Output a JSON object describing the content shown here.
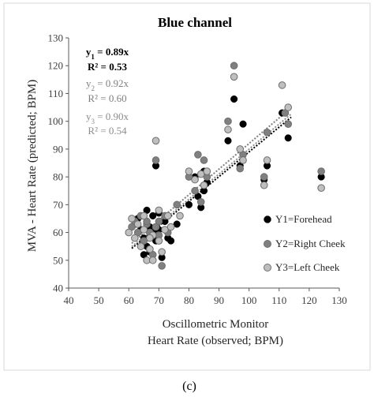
{
  "caption": "(c)",
  "chart_data": {
    "type": "scatter",
    "title": "Blue channel",
    "xlabel_line1": "Oscillometric Monitor",
    "xlabel_line2": "Heart Rate (observed; BPM)",
    "ylabel": "MVA - Heart Rate (predicted; BPM)",
    "xlim": [
      40,
      130
    ],
    "ylim": [
      40,
      130
    ],
    "xticks": [
      "40",
      "50",
      "60",
      "70",
      "80",
      "90",
      "100",
      "110",
      "120",
      "130"
    ],
    "yticks": [
      "40",
      "50",
      "60",
      "70",
      "80",
      "90",
      "100",
      "110",
      "120",
      "130"
    ],
    "grid": false,
    "legend_position": "bottom-right",
    "equations": [
      {
        "line1_html": "y<tspan baseline-shift='sub' font-size='9'>1</tspan> = 0.89x",
        "r2": "R² = 0.53",
        "color": "#000000",
        "bold": true
      },
      {
        "line1_html": "y<tspan baseline-shift='sub' font-size='9'>2</tspan> = 0.92x",
        "r2": "R² = 0.60",
        "color": "#7f7f7f",
        "bold": false
      },
      {
        "line1_html": "y<tspan baseline-shift='sub' font-size='9'>3</tspan> = 0.90x",
        "r2": "R² = 0.54",
        "color": "#8c8c8c",
        "bold": false
      }
    ],
    "series": [
      {
        "name": "Y1=Forehead",
        "fill": "#000000",
        "stroke": "#000000",
        "slope": 0.89,
        "points": [
          [
            62,
            63
          ],
          [
            63,
            65
          ],
          [
            64,
            61
          ],
          [
            65,
            58
          ],
          [
            66,
            68
          ],
          [
            66,
            55
          ],
          [
            67,
            62
          ],
          [
            68,
            66
          ],
          [
            68,
            60
          ],
          [
            69,
            57
          ],
          [
            70,
            67
          ],
          [
            70,
            61
          ],
          [
            71,
            51
          ],
          [
            69,
            84
          ],
          [
            72,
            64
          ],
          [
            73,
            58
          ],
          [
            74,
            57
          ],
          [
            76,
            63
          ],
          [
            80,
            70
          ],
          [
            82,
            80
          ],
          [
            83,
            73
          ],
          [
            84,
            69
          ],
          [
            85,
            75
          ],
          [
            85,
            82
          ],
          [
            86,
            78
          ],
          [
            93,
            93
          ],
          [
            95,
            108
          ],
          [
            97,
            84
          ],
          [
            98,
            99
          ],
          [
            105,
            79
          ],
          [
            106,
            84
          ],
          [
            111,
            103
          ],
          [
            113,
            94
          ],
          [
            124,
            80
          ],
          [
            65,
            52
          ],
          [
            67,
            53
          ]
        ]
      },
      {
        "name": "Y2=Right Cheek",
        "fill": "#808080",
        "stroke": "#6d6d6d",
        "slope": 0.92,
        "points": [
          [
            61,
            62
          ],
          [
            62,
            64
          ],
          [
            63,
            60
          ],
          [
            64,
            66
          ],
          [
            65,
            57
          ],
          [
            66,
            63
          ],
          [
            67,
            60
          ],
          [
            68,
            52
          ],
          [
            69,
            86
          ],
          [
            70,
            59
          ],
          [
            70,
            64
          ],
          [
            71,
            48
          ],
          [
            72,
            66
          ],
          [
            73,
            60
          ],
          [
            76,
            70
          ],
          [
            80,
            80
          ],
          [
            82,
            75
          ],
          [
            83,
            88
          ],
          [
            84,
            71
          ],
          [
            85,
            86
          ],
          [
            86,
            80
          ],
          [
            93,
            100
          ],
          [
            95,
            120
          ],
          [
            97,
            83
          ],
          [
            98,
            88
          ],
          [
            105,
            80
          ],
          [
            106,
            96
          ],
          [
            112,
            103
          ],
          [
            113,
            99
          ],
          [
            124,
            82
          ],
          [
            66,
            64
          ],
          [
            69,
            62
          ]
        ]
      },
      {
        "name": "Y3=Left Cheek",
        "fill": "#bfbfbf",
        "stroke": "#6d6d6d",
        "slope": 0.9,
        "points": [
          [
            60,
            60
          ],
          [
            61,
            65
          ],
          [
            62,
            58
          ],
          [
            63,
            63
          ],
          [
            64,
            55
          ],
          [
            65,
            66
          ],
          [
            66,
            50
          ],
          [
            67,
            54
          ],
          [
            68,
            59
          ],
          [
            69,
            93
          ],
          [
            70,
            57
          ],
          [
            70,
            68
          ],
          [
            71,
            53
          ],
          [
            72,
            61
          ],
          [
            73,
            66
          ],
          [
            74,
            62
          ],
          [
            77,
            66
          ],
          [
            80,
            82
          ],
          [
            82,
            79
          ],
          [
            84,
            81
          ],
          [
            85,
            77
          ],
          [
            86,
            82
          ],
          [
            93,
            97
          ],
          [
            95,
            116
          ],
          [
            97,
            90
          ],
          [
            98,
            86
          ],
          [
            105,
            77
          ],
          [
            106,
            86
          ],
          [
            111,
            113
          ],
          [
            113,
            105
          ],
          [
            124,
            76
          ],
          [
            67,
            58
          ],
          [
            68,
            50
          ],
          [
            65,
            61
          ]
        ]
      }
    ]
  }
}
